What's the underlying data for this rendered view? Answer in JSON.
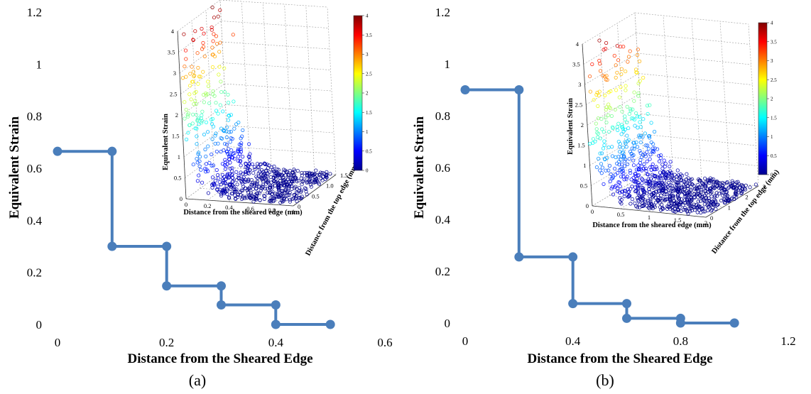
{
  "chart_data": [
    {
      "type": "line",
      "panel": "(a)",
      "xlabel": "Distance from the Sheared Edge",
      "ylabel": "Equivalent Strain",
      "xlim": [
        0,
        0.6
      ],
      "ylim": [
        0,
        1.2
      ],
      "xticks": [
        "0",
        "0.2",
        "0.4",
        "0.6"
      ],
      "yticks": [
        "0",
        "0.2",
        "0.4",
        "0.6",
        "0.8",
        "1",
        "1.2"
      ],
      "series": [
        {
          "color": "#4a7ebb",
          "points": [
            [
              0,
              0.665
            ],
            [
              0.1,
              0.665
            ],
            [
              0.1,
              0.3
            ],
            [
              0.2,
              0.3
            ],
            [
              0.2,
              0.148
            ],
            [
              0.3,
              0.148
            ],
            [
              0.3,
              0.075
            ],
            [
              0.4,
              0.075
            ],
            [
              0.4,
              0
            ],
            [
              0.5,
              0
            ]
          ]
        }
      ],
      "inset": {
        "type": "scatter3d",
        "xlabel": "Distance from the sheared edge (mm)",
        "ylabel": "Distance from the top edge (mm)",
        "zlabel": "Equivalent Strain",
        "xticks": [
          "0",
          "0.2",
          "0.4",
          "0.6",
          "0.8",
          "1"
        ],
        "yticks": [
          "0",
          "0.5",
          "1.0",
          "1.5"
        ],
        "zticks": [
          "0",
          "0.5",
          "1",
          "1.5",
          "2",
          "2.5",
          "3",
          "3.5",
          "4"
        ],
        "xmax": 1.0,
        "ymax": 1.5,
        "colorbar_ticks": [
          "0",
          "0.5",
          "1",
          "1.5",
          "2",
          "2.5",
          "3",
          "3.5",
          "4"
        ],
        "colormap": "jet"
      }
    },
    {
      "type": "line",
      "panel": "(b)",
      "xlabel": "Distance from the Sheared Edge",
      "ylabel": "Equivalent Strain",
      "xlim": [
        0,
        1.2
      ],
      "ylim": [
        0,
        1.2
      ],
      "xticks": [
        "0",
        "0.4",
        "0.8",
        "1.2"
      ],
      "yticks": [
        "0",
        "0.2",
        "0.4",
        "0.6",
        "0.8",
        "1",
        "1.2"
      ],
      "series": [
        {
          "color": "#4a7ebb",
          "points": [
            [
              0,
              0.9
            ],
            [
              0.2,
              0.9
            ],
            [
              0.2,
              0.255
            ],
            [
              0.4,
              0.255
            ],
            [
              0.4,
              0.075
            ],
            [
              0.6,
              0.075
            ],
            [
              0.6,
              0.018
            ],
            [
              0.8,
              0.018
            ],
            [
              0.8,
              0
            ],
            [
              1.0,
              0
            ]
          ]
        }
      ],
      "inset": {
        "type": "scatter3d",
        "xlabel": "Distance from the sheared edge (mm)",
        "ylabel": "Distance from the top edge (mm)",
        "zlabel": "Equivalent Strain",
        "xticks": [
          "0",
          "0.5",
          "1",
          "1.5",
          "2"
        ],
        "yticks": [
          "0",
          "1",
          "2",
          "3"
        ],
        "zticks": [
          "0",
          "0.5",
          "1",
          "1.5",
          "2",
          "2.5",
          "3",
          "3.5",
          "4"
        ],
        "xmax": 2.0,
        "ymax": 3.0,
        "colorbar_ticks": [
          "0",
          "0.5",
          "1",
          "1.5",
          "2",
          "2.5",
          "3",
          "3.5",
          "4"
        ],
        "colormap": "jet"
      }
    }
  ]
}
